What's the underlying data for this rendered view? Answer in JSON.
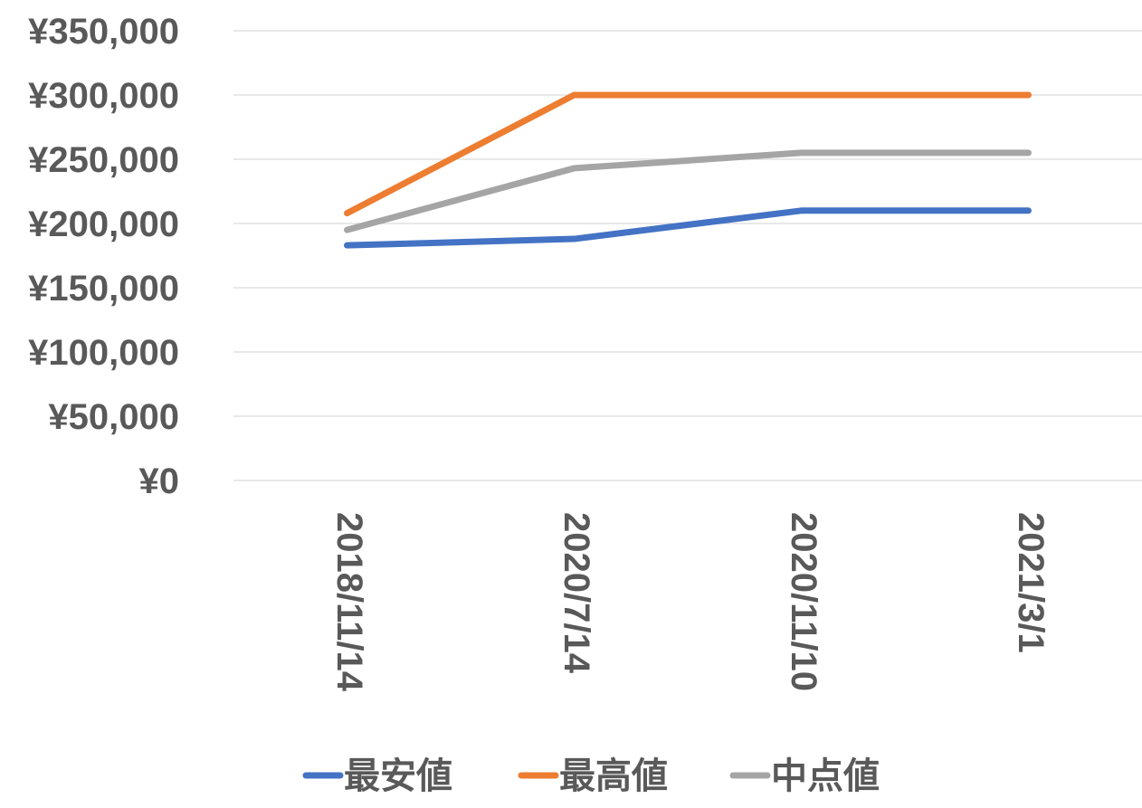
{
  "chart_data": {
    "type": "line",
    "categories": [
      "2018/11/14",
      "2020/7/14",
      "2020/11/10",
      "2021/3/1"
    ],
    "series": [
      {
        "name": "最安値",
        "color": "#4472c4",
        "values": [
          183000,
          188000,
          210000,
          210000
        ]
      },
      {
        "name": "最高値",
        "color": "#ed7d31",
        "values": [
          208000,
          300000,
          300000,
          300000
        ]
      },
      {
        "name": "中点値",
        "color": "#a5a5a5",
        "values": [
          195000,
          243000,
          255000,
          255000
        ]
      }
    ],
    "ylim": [
      0,
      350000
    ],
    "y_ticks": [
      "¥0",
      "¥50,000",
      "¥100,000",
      "¥150,000",
      "¥200,000",
      "¥250,000",
      "¥300,000",
      "¥350,000"
    ],
    "gridlines": true,
    "legend_position": "bottom",
    "gridline_color": "#d9d9d9"
  }
}
